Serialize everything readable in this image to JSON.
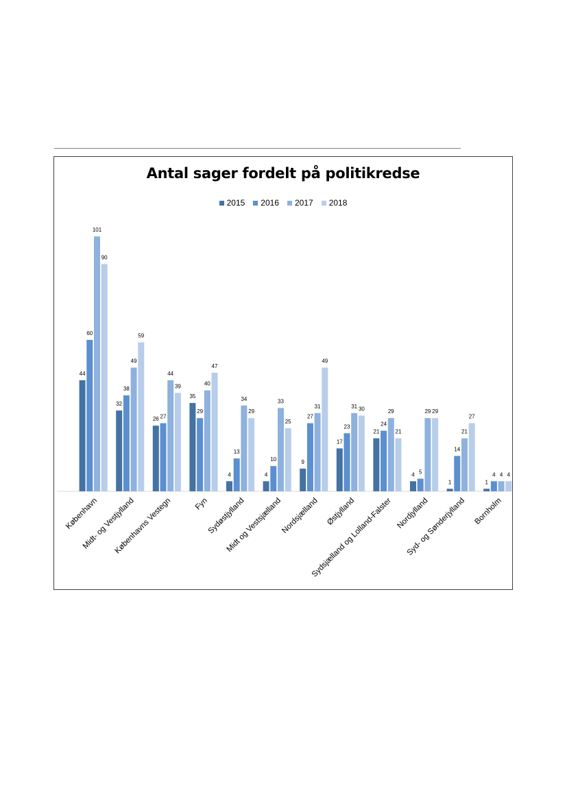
{
  "chart_data": {
    "type": "bar",
    "title": "Antal sager fordelt på politikredse",
    "categories": [
      "København",
      "Midt- og Vestjylland",
      "Københavns Vestegn",
      "Fyn",
      "Sydøstjylland",
      "Midt og Vestsjælland",
      "Nordsjælland",
      "Østjylland",
      "Sydsjælland og Lolland-Falster",
      "Nordjylland",
      "Syd- og Sønderjylland",
      "Bornholm"
    ],
    "series": [
      {
        "name": "2015",
        "color": "#4472a4",
        "values": [
          44,
          32,
          26,
          35,
          4,
          4,
          9,
          17,
          21,
          4,
          1,
          1
        ]
      },
      {
        "name": "2016",
        "color": "#5b8fd0",
        "values": [
          60,
          38,
          27,
          29,
          13,
          10,
          27,
          23,
          24,
          5,
          14,
          4
        ]
      },
      {
        "name": "2017",
        "color": "#8eb1de",
        "values": [
          101,
          49,
          44,
          40,
          34,
          33,
          31,
          31,
          29,
          29,
          21,
          4
        ]
      },
      {
        "name": "2018",
        "color": "#b7cdea",
        "values": [
          90,
          59,
          39,
          47,
          29,
          25,
          49,
          30,
          21,
          29,
          27,
          4
        ]
      }
    ],
    "ylim": [
      0,
      101
    ],
    "grid": false,
    "legend": "top-center",
    "data_labels": true
  }
}
